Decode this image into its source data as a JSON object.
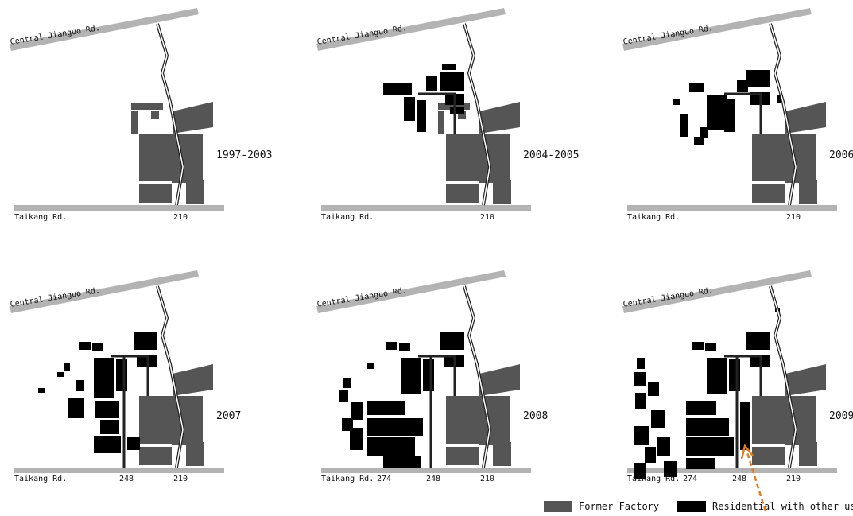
{
  "colors": {
    "road": "#b3b3b3",
    "factory": "#555555",
    "residential": "#000000",
    "arrow": "#e07a1e"
  },
  "panels": [
    {
      "year": "1997-2003",
      "top_road": "Central Jianguo Rd.",
      "bottom_road": "Taikang Rd.",
      "lane_left": "",
      "lane_mid": "",
      "lane_right": "210",
      "stage": 0
    },
    {
      "year": "2004-2005",
      "top_road": "Central Jianguo Rd.",
      "bottom_road": "Taikang Rd.",
      "lane_left": "",
      "lane_mid": "",
      "lane_right": "210",
      "stage": 1
    },
    {
      "year": "2006",
      "top_road": "Central Jianguo Rd.",
      "bottom_road": "Taikang Rd.",
      "lane_left": "",
      "lane_mid": "",
      "lane_right": "210",
      "stage": 2
    },
    {
      "year": "2007",
      "top_road": "Central Jianguo Rd.",
      "bottom_road": "Taikang Rd.",
      "lane_left": "",
      "lane_mid": "248",
      "lane_right": "210",
      "stage": 3
    },
    {
      "year": "2008",
      "top_road": "Central Jianguo Rd.",
      "bottom_road": "Taikang Rd.",
      "lane_left": "274",
      "lane_mid": "248",
      "lane_right": "210",
      "stage": 4
    },
    {
      "year": "2009",
      "top_road": "Central Jianguo Rd.",
      "bottom_road": "Taikang Rd.",
      "lane_left": "274",
      "lane_mid": "248",
      "lane_right": "210",
      "stage": 5
    }
  ],
  "legend": {
    "factory_label": "Former Factory",
    "residential_label": "Residential with other use"
  }
}
